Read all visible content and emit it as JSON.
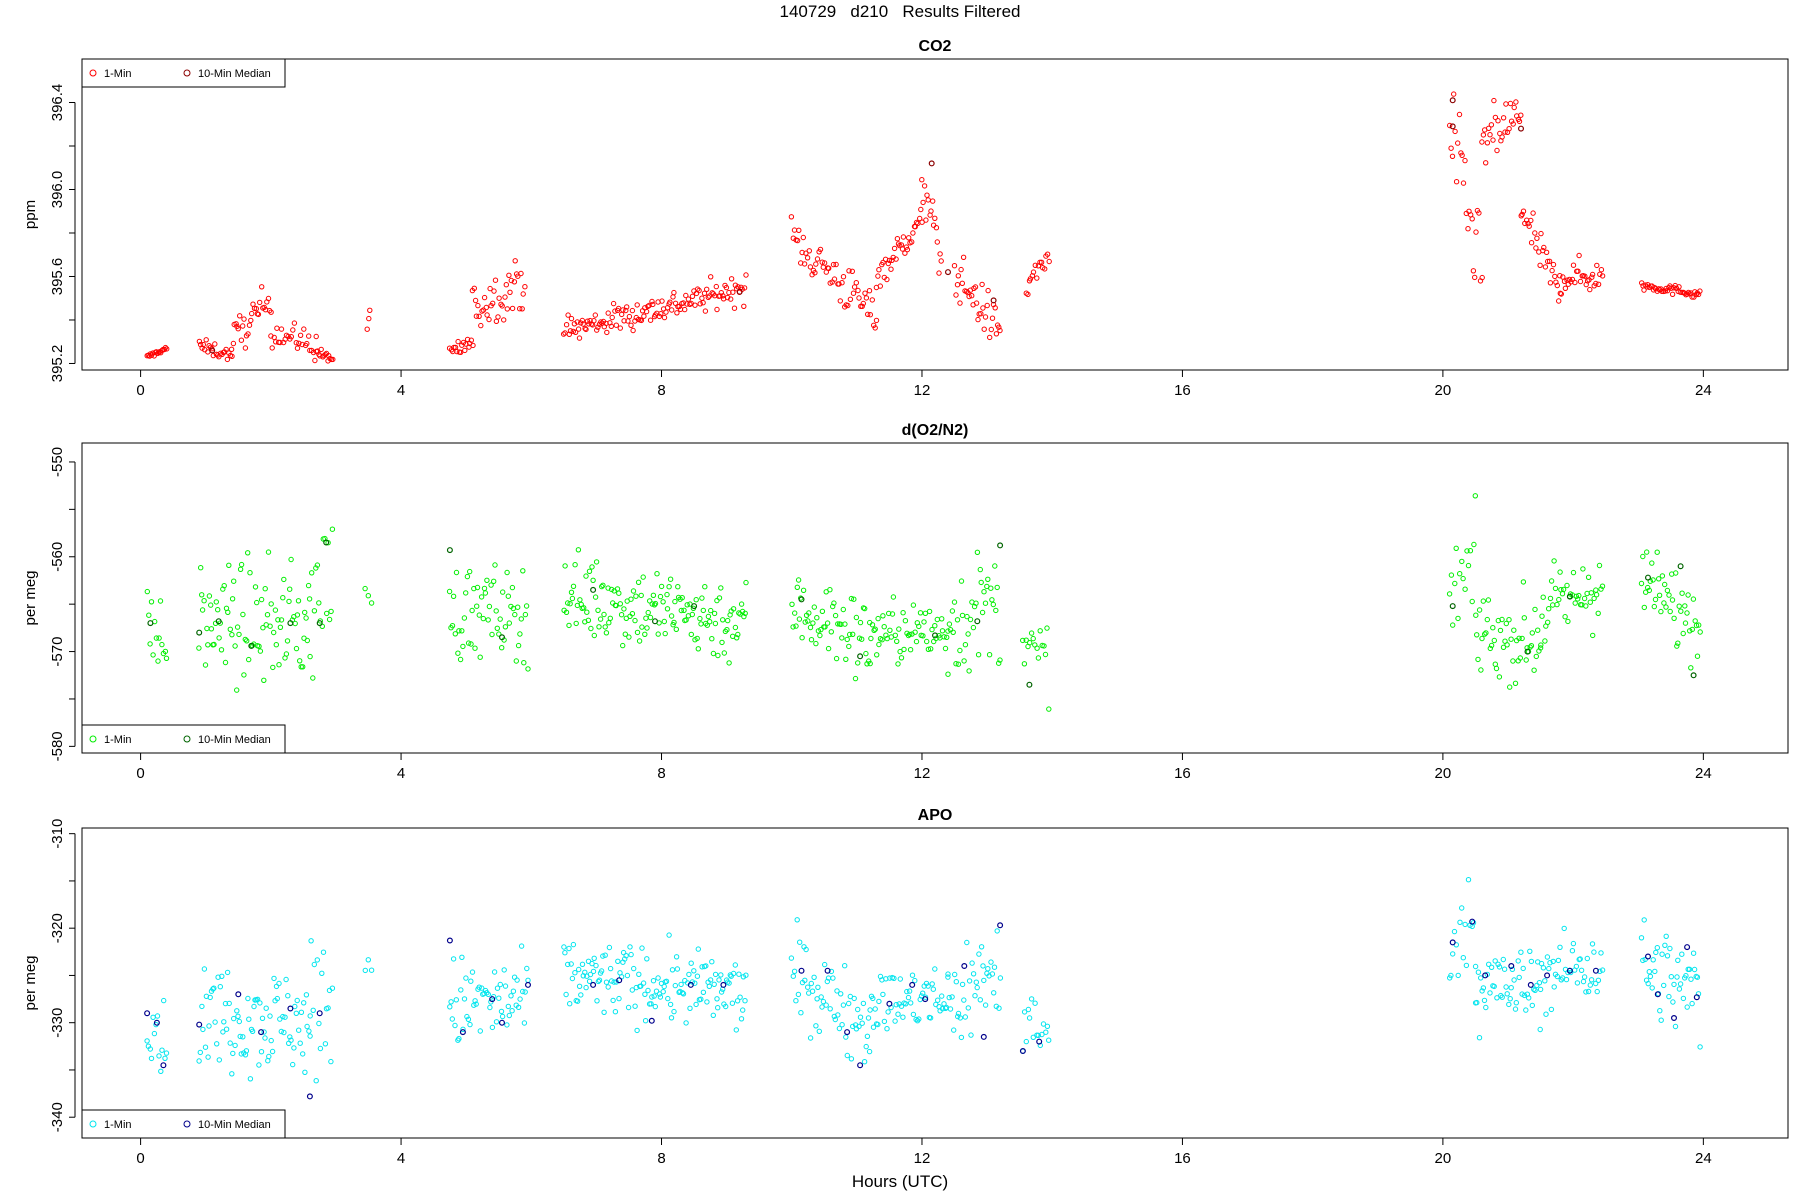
{
  "figure": {
    "title": "140729   d210   Results Filtered",
    "xlabel": "Hours (UTC)"
  },
  "colors": {
    "co2_1min": "#ff0000",
    "co2_median": "#8b0000",
    "o2_1min": "#00ee00",
    "o2_median": "#006400",
    "apo_1min": "#00e5ee",
    "apo_median": "#00008b"
  },
  "chart_data": [
    {
      "type": "scatter",
      "title": "CO2",
      "ylabel": "ppm",
      "xlim": [
        -0.9,
        25.3
      ],
      "ylim": [
        395.17,
        396.6
      ],
      "x_ticks": [
        0,
        4,
        8,
        12,
        16,
        20,
        24
      ],
      "y_ticks": [
        395.2,
        395.6,
        396.0,
        396.4
      ],
      "y_tick_labels": [
        "395.2",
        "395.6",
        "396.0",
        "396.4"
      ],
      "legend": {
        "position": "top-left",
        "entries": [
          "1-Min",
          "10-Min Median"
        ]
      },
      "segments": [
        {
          "x": [
            0.1,
            0.4
          ],
          "y": [
            395.23,
            395.27
          ],
          "n": 18,
          "noise": 0.01
        },
        {
          "x": [
            0.9,
            1.4
          ],
          "y": [
            395.28,
            395.24
          ],
          "n": 24,
          "noise": 0.03
        },
        {
          "x": [
            1.4,
            2.0
          ],
          "y": [
            395.3,
            395.5
          ],
          "n": 30,
          "noise": 0.08
        },
        {
          "x": [
            2.0,
            2.7
          ],
          "y": [
            395.35,
            395.28
          ],
          "n": 30,
          "noise": 0.06
        },
        {
          "x": [
            2.7,
            2.95
          ],
          "y": [
            395.25,
            395.22
          ],
          "n": 14,
          "noise": 0.03
        },
        {
          "x": [
            3.48,
            3.52
          ],
          "y": [
            395.38,
            395.38
          ],
          "n": 3,
          "noise": 0.05
        },
        {
          "x": [
            4.75,
            5.1
          ],
          "y": [
            395.25,
            395.3
          ],
          "n": 18,
          "noise": 0.04
        },
        {
          "x": [
            5.1,
            5.9
          ],
          "y": [
            395.45,
            395.58
          ],
          "n": 40,
          "noise": 0.1
        },
        {
          "x": [
            6.5,
            9.3
          ],
          "y": [
            395.35,
            395.55
          ],
          "n": 140,
          "noise": 0.06
        },
        {
          "x": [
            10.0,
            11.3
          ],
          "y": [
            395.78,
            395.42
          ],
          "n": 60,
          "noise": 0.1
        },
        {
          "x": [
            11.3,
            12.0
          ],
          "y": [
            395.6,
            395.85
          ],
          "n": 36,
          "noise": 0.06
        },
        {
          "x": [
            12.0,
            12.3
          ],
          "y": [
            396.05,
            395.65
          ],
          "n": 16,
          "noise": 0.12
        },
        {
          "x": [
            12.5,
            13.2
          ],
          "y": [
            395.62,
            395.35
          ],
          "n": 36,
          "noise": 0.1
        },
        {
          "x": [
            13.6,
            13.95
          ],
          "y": [
            395.55,
            395.7
          ],
          "n": 16,
          "noise": 0.06
        },
        {
          "x": [
            20.1,
            20.6
          ],
          "y": [
            396.3,
            395.6
          ],
          "n": 24,
          "noise": 0.2
        },
        {
          "x": [
            20.6,
            21.2
          ],
          "y": [
            396.2,
            396.35
          ],
          "n": 30,
          "noise": 0.12
        },
        {
          "x": [
            21.2,
            21.8
          ],
          "y": [
            395.9,
            395.52
          ],
          "n": 30,
          "noise": 0.08
        },
        {
          "x": [
            21.8,
            22.45
          ],
          "y": [
            395.6,
            395.6
          ],
          "n": 32,
          "noise": 0.07
        },
        {
          "x": [
            23.05,
            23.95
          ],
          "y": [
            395.56,
            395.52
          ],
          "n": 46,
          "noise": 0.02
        }
      ],
      "median_points": [
        {
          "x": 20.15,
          "y": 396.41
        },
        {
          "x": 20.15,
          "y": 396.29
        },
        {
          "x": 21.2,
          "y": 396.28
        },
        {
          "x": 12.15,
          "y": 396.12
        },
        {
          "x": 12.4,
          "y": 395.62
        },
        {
          "x": 13.1,
          "y": 395.49
        },
        {
          "x": 9.2,
          "y": 395.53
        },
        {
          "x": 1.1,
          "y": 395.26
        }
      ]
    },
    {
      "type": "scatter",
      "title": "d(O2/N2)",
      "ylabel": "per meg",
      "xlim": [
        -0.9,
        25.3
      ],
      "ylim": [
        -580.7,
        -548
      ],
      "x_ticks": [
        0,
        4,
        8,
        12,
        16,
        20,
        24
      ],
      "y_ticks": [
        -580,
        -570,
        -560,
        -550
      ],
      "y_tick_labels": [
        "-580",
        "-570",
        "-560",
        "-550"
      ],
      "legend": {
        "position": "bottom-left",
        "entries": [
          "1-Min",
          "10-Min Median"
        ]
      },
      "segments": [
        {
          "x": [
            0.1,
            0.4
          ],
          "y": [
            -566.5,
            -570
          ],
          "n": 14,
          "noise": 3.5
        },
        {
          "x": [
            0.9,
            2.6
          ],
          "y": [
            -567,
            -567
          ],
          "n": 90,
          "noise": 5.5
        },
        {
          "x": [
            2.6,
            2.95
          ],
          "y": [
            -566,
            -562
          ],
          "n": 16,
          "noise": 7
        },
        {
          "x": [
            3.45,
            3.55
          ],
          "y": [
            -563.5,
            -563.5
          ],
          "n": 3,
          "noise": 1.5
        },
        {
          "x": [
            4.75,
            5.95
          ],
          "y": [
            -566,
            -566
          ],
          "n": 60,
          "noise": 4.5
        },
        {
          "x": [
            6.5,
            9.3
          ],
          "y": [
            -564,
            -567
          ],
          "n": 150,
          "noise": 4
        },
        {
          "x": [
            10.0,
            11.2
          ],
          "y": [
            -565,
            -569
          ],
          "n": 60,
          "noise": 4
        },
        {
          "x": [
            11.2,
            12.4
          ],
          "y": [
            -568,
            -568
          ],
          "n": 60,
          "noise": 3
        },
        {
          "x": [
            12.4,
            13.2
          ],
          "y": [
            -567,
            -565
          ],
          "n": 40,
          "noise": 5.5
        },
        {
          "x": [
            13.55,
            13.95
          ],
          "y": [
            -570,
            -571
          ],
          "n": 16,
          "noise": 3.5
        },
        {
          "x": [
            20.1,
            20.5
          ],
          "y": [
            -565,
            -560
          ],
          "n": 16,
          "noise": 4
        },
        {
          "x": [
            20.5,
            21.5
          ],
          "y": [
            -568,
            -569
          ],
          "n": 50,
          "noise": 4
        },
        {
          "x": [
            21.5,
            22.45
          ],
          "y": [
            -566,
            -563
          ],
          "n": 46,
          "noise": 3.5
        },
        {
          "x": [
            23.05,
            23.95
          ],
          "y": [
            -563,
            -567
          ],
          "n": 46,
          "noise": 4
        }
      ],
      "median_points": [
        {
          "x": 0.15,
          "y": -567
        },
        {
          "x": 0.9,
          "y": -568
        },
        {
          "x": 1.2,
          "y": -566.8
        },
        {
          "x": 1.7,
          "y": -569.4
        },
        {
          "x": 2.3,
          "y": -567
        },
        {
          "x": 2.75,
          "y": -567
        },
        {
          "x": 2.85,
          "y": -558.5
        },
        {
          "x": 4.75,
          "y": -559.3
        },
        {
          "x": 5.55,
          "y": -568.5
        },
        {
          "x": 6.95,
          "y": -563.5
        },
        {
          "x": 7.9,
          "y": -566.8
        },
        {
          "x": 8.5,
          "y": -565.2
        },
        {
          "x": 10.15,
          "y": -564.5
        },
        {
          "x": 11.05,
          "y": -570.5
        },
        {
          "x": 12.2,
          "y": -568.3
        },
        {
          "x": 12.85,
          "y": -566.8
        },
        {
          "x": 13.2,
          "y": -558.8
        },
        {
          "x": 13.65,
          "y": -573.5
        },
        {
          "x": 20.15,
          "y": -565.2
        },
        {
          "x": 21.3,
          "y": -570
        },
        {
          "x": 21.95,
          "y": -564.2
        },
        {
          "x": 23.15,
          "y": -562.2
        },
        {
          "x": 23.65,
          "y": -561
        },
        {
          "x": 23.85,
          "y": -572.5
        }
      ]
    },
    {
      "type": "scatter",
      "title": "APO",
      "ylabel": "per meg",
      "xlim": [
        -0.9,
        25.3
      ],
      "ylim": [
        -342.2,
        -309.4
      ],
      "x_ticks": [
        0,
        4,
        8,
        12,
        16,
        20,
        24
      ],
      "y_ticks": [
        -340,
        -330,
        -320,
        -310
      ],
      "y_tick_labels": [
        "-340",
        "-330",
        "-320",
        "-310"
      ],
      "legend": {
        "position": "bottom-left",
        "entries": [
          "1-Min",
          "10-Min Median"
        ]
      },
      "segments": [
        {
          "x": [
            0.1,
            0.4
          ],
          "y": [
            -328.5,
            -333
          ],
          "n": 14,
          "noise": 3.5
        },
        {
          "x": [
            0.9,
            2.6
          ],
          "y": [
            -329,
            -330
          ],
          "n": 90,
          "noise": 5
        },
        {
          "x": [
            2.6,
            2.95
          ],
          "y": [
            -330,
            -326
          ],
          "n": 16,
          "noise": 8
        },
        {
          "x": [
            3.45,
            3.55
          ],
          "y": [
            -324.5,
            -324.5
          ],
          "n": 3,
          "noise": 1.5
        },
        {
          "x": [
            4.75,
            5.95
          ],
          "y": [
            -328,
            -328
          ],
          "n": 60,
          "noise": 4.5
        },
        {
          "x": [
            6.5,
            9.3
          ],
          "y": [
            -325,
            -327
          ],
          "n": 150,
          "noise": 3.5
        },
        {
          "x": [
            10.0,
            11.2
          ],
          "y": [
            -325,
            -330
          ],
          "n": 60,
          "noise": 4
        },
        {
          "x": [
            11.2,
            12.4
          ],
          "y": [
            -328,
            -327.5
          ],
          "n": 60,
          "noise": 3
        },
        {
          "x": [
            12.4,
            13.2
          ],
          "y": [
            -328,
            -324
          ],
          "n": 40,
          "noise": 5.5
        },
        {
          "x": [
            13.55,
            13.95
          ],
          "y": [
            -330,
            -332
          ],
          "n": 16,
          "noise": 3.5
        },
        {
          "x": [
            20.1,
            20.5
          ],
          "y": [
            -322,
            -319
          ],
          "n": 16,
          "noise": 4
        },
        {
          "x": [
            20.5,
            21.5
          ],
          "y": [
            -326,
            -326.5
          ],
          "n": 50,
          "noise": 4
        },
        {
          "x": [
            21.5,
            22.45
          ],
          "y": [
            -325,
            -323.5
          ],
          "n": 46,
          "noise": 3.5
        },
        {
          "x": [
            23.05,
            23.95
          ],
          "y": [
            -324,
            -327
          ],
          "n": 46,
          "noise": 4.5
        }
      ],
      "median_points": [
        {
          "x": 0.1,
          "y": -329
        },
        {
          "x": 0.25,
          "y": -330
        },
        {
          "x": 0.35,
          "y": -334.5
        },
        {
          "x": 0.9,
          "y": -330.2
        },
        {
          "x": 1.5,
          "y": -327
        },
        {
          "x": 1.85,
          "y": -331
        },
        {
          "x": 2.3,
          "y": -328.5
        },
        {
          "x": 2.6,
          "y": -337.8
        },
        {
          "x": 2.75,
          "y": -329
        },
        {
          "x": 4.75,
          "y": -321.3
        },
        {
          "x": 4.95,
          "y": -331
        },
        {
          "x": 5.4,
          "y": -327.5
        },
        {
          "x": 5.55,
          "y": -330
        },
        {
          "x": 5.95,
          "y": -326
        },
        {
          "x": 6.95,
          "y": -326
        },
        {
          "x": 7.35,
          "y": -325.5
        },
        {
          "x": 7.85,
          "y": -329.8
        },
        {
          "x": 8.45,
          "y": -326
        },
        {
          "x": 8.95,
          "y": -326
        },
        {
          "x": 10.15,
          "y": -324.5
        },
        {
          "x": 10.55,
          "y": -324.5
        },
        {
          "x": 10.85,
          "y": -331
        },
        {
          "x": 11.05,
          "y": -334.5
        },
        {
          "x": 11.5,
          "y": -328
        },
        {
          "x": 11.85,
          "y": -326
        },
        {
          "x": 12.05,
          "y": -327.5
        },
        {
          "x": 12.65,
          "y": -324
        },
        {
          "x": 12.95,
          "y": -331.5
        },
        {
          "x": 13.2,
          "y": -319.7
        },
        {
          "x": 13.55,
          "y": -333
        },
        {
          "x": 13.8,
          "y": -332
        },
        {
          "x": 20.15,
          "y": -321.5
        },
        {
          "x": 20.45,
          "y": -319.3
        },
        {
          "x": 20.65,
          "y": -325
        },
        {
          "x": 21.05,
          "y": -324
        },
        {
          "x": 21.35,
          "y": -326
        },
        {
          "x": 21.6,
          "y": -325
        },
        {
          "x": 21.95,
          "y": -324.5
        },
        {
          "x": 22.35,
          "y": -324.5
        },
        {
          "x": 23.15,
          "y": -323
        },
        {
          "x": 23.3,
          "y": -327
        },
        {
          "x": 23.55,
          "y": -329.5
        },
        {
          "x": 23.75,
          "y": -322
        },
        {
          "x": 23.9,
          "y": -327.3
        }
      ]
    }
  ]
}
